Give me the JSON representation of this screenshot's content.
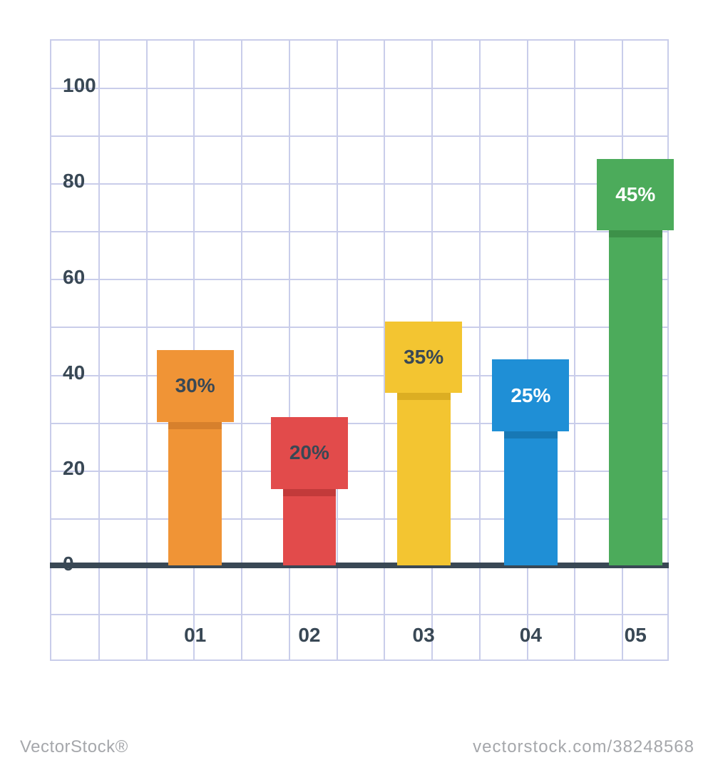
{
  "chart": {
    "type": "bar",
    "background_color": "#ffffff",
    "grid_color": "#c9cdea",
    "label_color": "#394855",
    "baseline_color": "#394855",
    "label_fontsize": 28,
    "grid": {
      "cols": 13,
      "rows": 13,
      "line_width": 2
    },
    "y_axis": {
      "ticks": [
        "0",
        "20",
        "40",
        "60",
        "80",
        "100"
      ],
      "tick_row_from_bottom": [
        2,
        4,
        6,
        8,
        10,
        12
      ],
      "min": 0,
      "max": 100,
      "step": 20
    },
    "x_axis": {
      "labels": [
        "01",
        "02",
        "03",
        "04",
        "05"
      ],
      "label_row_from_bottom": 1
    },
    "baseline_row_from_bottom": 2,
    "bars": [
      {
        "id": "bar-01",
        "category": "01",
        "value_label": "30%",
        "stem_height_rows": 3.0,
        "cap_height_rows": 1.5,
        "stem_width_cols": 1.12,
        "cap_overhang_cols": 0.25,
        "center_col": 3.05,
        "color": "#f09436",
        "dark": "#d7802c",
        "text_color": "#394855"
      },
      {
        "id": "bar-02",
        "category": "02",
        "value_label": "20%",
        "stem_height_rows": 1.6,
        "cap_height_rows": 1.5,
        "stem_width_cols": 1.12,
        "cap_overhang_cols": 0.25,
        "center_col": 5.45,
        "color": "#e24b4b",
        "dark": "#c23a3a",
        "text_color": "#394855"
      },
      {
        "id": "bar-03",
        "category": "03",
        "value_label": "35%",
        "stem_height_rows": 3.6,
        "cap_height_rows": 1.5,
        "stem_width_cols": 1.12,
        "cap_overhang_cols": 0.25,
        "center_col": 7.85,
        "color": "#f3c531",
        "dark": "#dcae22",
        "text_color": "#394855"
      },
      {
        "id": "bar-04",
        "category": "04",
        "value_label": "25%",
        "stem_height_rows": 2.8,
        "cap_height_rows": 1.5,
        "stem_width_cols": 1.12,
        "cap_overhang_cols": 0.25,
        "center_col": 10.1,
        "color": "#1f8fd6",
        "dark": "#1778b5",
        "text_color": "#ffffff"
      },
      {
        "id": "bar-05",
        "category": "05",
        "value_label": "45%",
        "stem_height_rows": 7.0,
        "cap_height_rows": 1.5,
        "stem_width_cols": 1.12,
        "cap_overhang_cols": 0.25,
        "center_col": 12.3,
        "color": "#4cab5b",
        "dark": "#3d9149",
        "text_color": "#ffffff"
      }
    ],
    "cap_shadow_rows": 0.15,
    "cap_fontsize": 28
  },
  "watermark": {
    "left": "VectorStock®",
    "right": "vectorstock.com/38248568"
  }
}
